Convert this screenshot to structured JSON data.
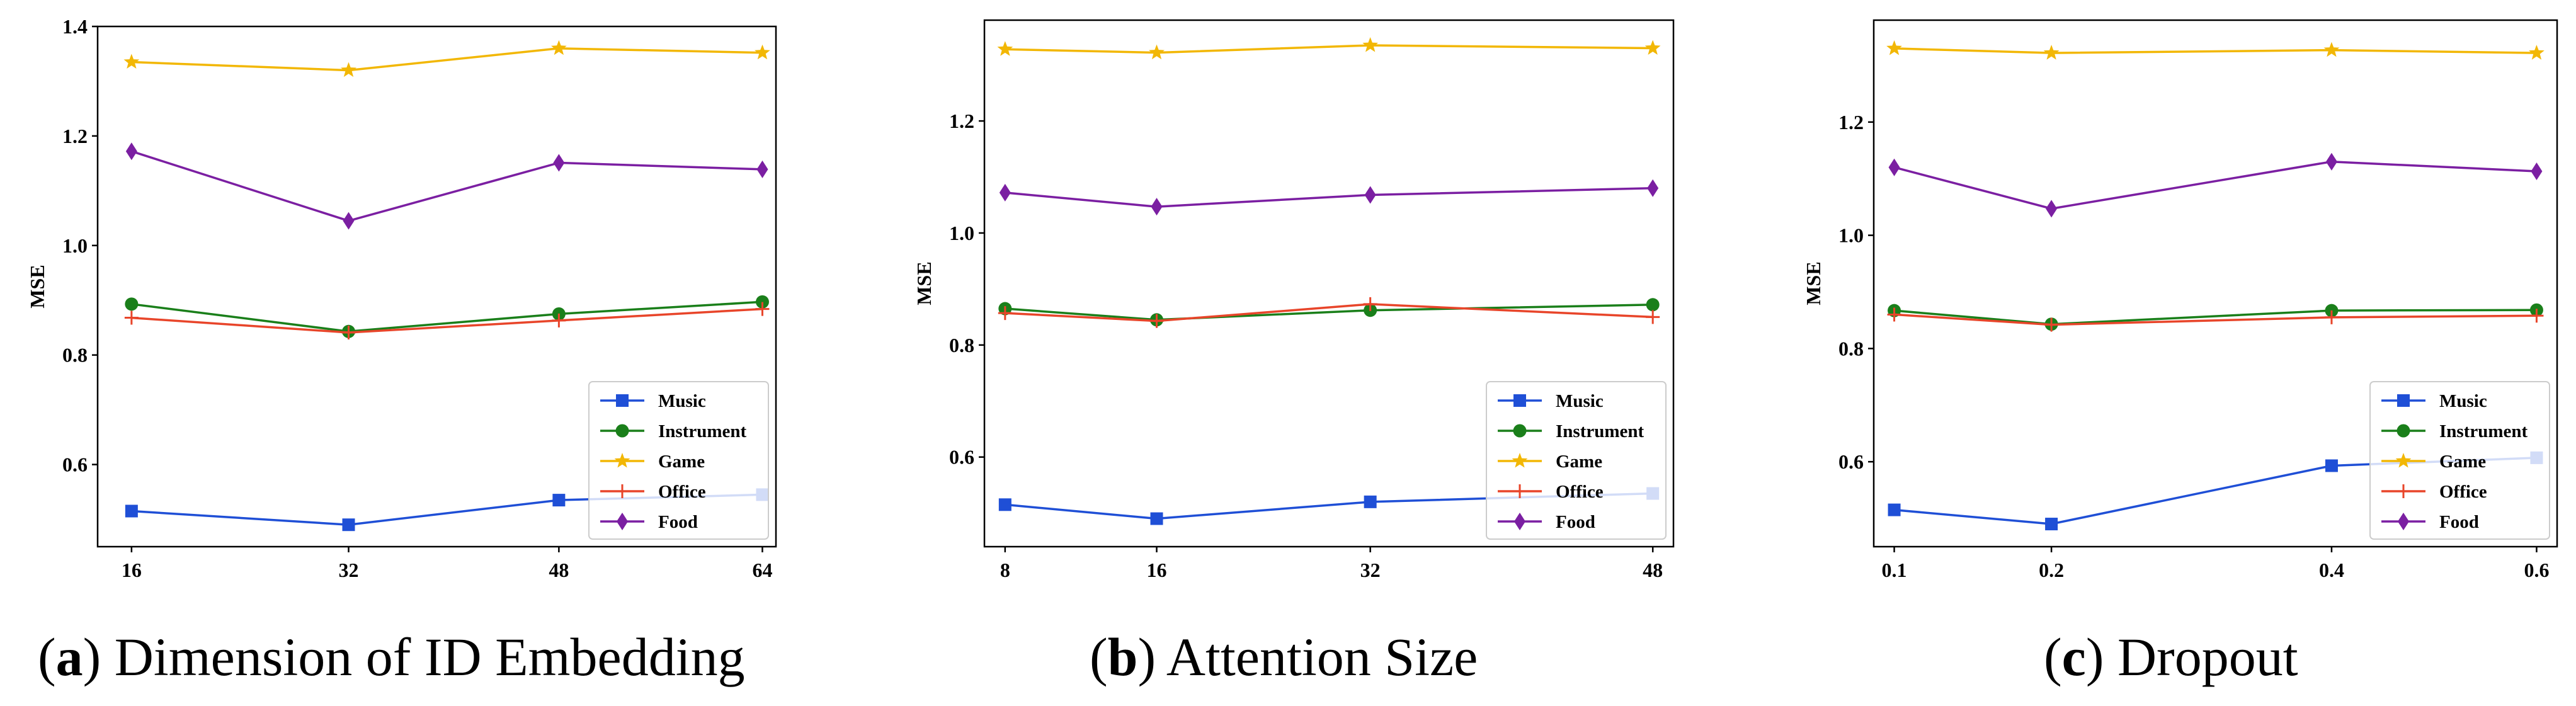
{
  "chart_data": [
    {
      "type": "line",
      "caption_letter": "a",
      "caption_text": "Dimension of ID Embedding",
      "ylabel": "MSE",
      "xlabel": "",
      "categories": [
        "16",
        "32",
        "48",
        "64"
      ],
      "ylim": [
        0.45,
        1.4
      ],
      "yticks": [
        "0.6",
        "0.8",
        "1.0",
        "1.2",
        "1.4"
      ],
      "legend_position": "lower-right",
      "series": [
        {
          "name": "Music",
          "color": "#1f4fd6",
          "marker": "square",
          "values": [
            0.515,
            0.49,
            0.535,
            0.545
          ]
        },
        {
          "name": "Instrument",
          "color": "#1a7f1a",
          "marker": "circle",
          "values": [
            0.893,
            0.843,
            0.875,
            0.897
          ]
        },
        {
          "name": "Game",
          "color": "#f2b705",
          "marker": "star",
          "values": [
            1.335,
            1.32,
            1.36,
            1.352
          ]
        },
        {
          "name": "Office",
          "color": "#e8452a",
          "marker": "plus",
          "values": [
            0.868,
            0.841,
            0.863,
            0.884
          ]
        },
        {
          "name": "Food",
          "color": "#7b1fa2",
          "marker": "diamond",
          "values": [
            1.172,
            1.045,
            1.151,
            1.139
          ]
        }
      ]
    },
    {
      "type": "line",
      "caption_letter": "b",
      "caption_text": "Attention Size",
      "ylabel": "MSE",
      "xlabel": "",
      "categories": [
        "8",
        "16",
        "32",
        "48"
      ],
      "x": [
        8,
        16,
        32,
        48
      ],
      "ylim": [
        0.44,
        1.38
      ],
      "yticks": [
        "0.6",
        "0.8",
        "1.0",
        "1.2"
      ],
      "legend_position": "lower-right",
      "series": [
        {
          "name": "Music",
          "color": "#1f4fd6",
          "marker": "square",
          "values": [
            0.515,
            0.49,
            0.52,
            0.535
          ]
        },
        {
          "name": "Instrument",
          "color": "#1a7f1a",
          "marker": "circle",
          "values": [
            0.865,
            0.845,
            0.862,
            0.872
          ]
        },
        {
          "name": "Game",
          "color": "#f2b705",
          "marker": "star",
          "values": [
            1.328,
            1.322,
            1.335,
            1.33
          ]
        },
        {
          "name": "Office",
          "color": "#e8452a",
          "marker": "plus",
          "values": [
            0.857,
            0.843,
            0.873,
            0.85
          ]
        },
        {
          "name": "Food",
          "color": "#7b1fa2",
          "marker": "diamond",
          "values": [
            1.072,
            1.047,
            1.068,
            1.08
          ]
        }
      ]
    },
    {
      "type": "line",
      "caption_letter": "c",
      "caption_text": "Dropout",
      "ylabel": "MSE",
      "xlabel": "",
      "categories": [
        "0.1",
        "0.2",
        "0.4",
        "0.6"
      ],
      "x": [
        0.1,
        0.2,
        0.4,
        0.6
      ],
      "ylim": [
        0.45,
        1.38
      ],
      "yticks": [
        "0.6",
        "0.8",
        "1.0",
        "1.2"
      ],
      "legend_position": "lower-right",
      "series": [
        {
          "name": "Music",
          "color": "#1f4fd6",
          "marker": "square",
          "values": [
            0.515,
            0.49,
            0.593,
            0.607
          ]
        },
        {
          "name": "Instrument",
          "color": "#1a7f1a",
          "marker": "circle",
          "values": [
            0.867,
            0.843,
            0.867,
            0.868
          ]
        },
        {
          "name": "Game",
          "color": "#f2b705",
          "marker": "star",
          "values": [
            1.33,
            1.322,
            1.327,
            1.322
          ]
        },
        {
          "name": "Office",
          "color": "#e8452a",
          "marker": "plus",
          "values": [
            0.86,
            0.842,
            0.855,
            0.858
          ]
        },
        {
          "name": "Food",
          "color": "#7b1fa2",
          "marker": "diamond",
          "values": [
            1.12,
            1.047,
            1.13,
            1.113
          ]
        }
      ]
    }
  ]
}
